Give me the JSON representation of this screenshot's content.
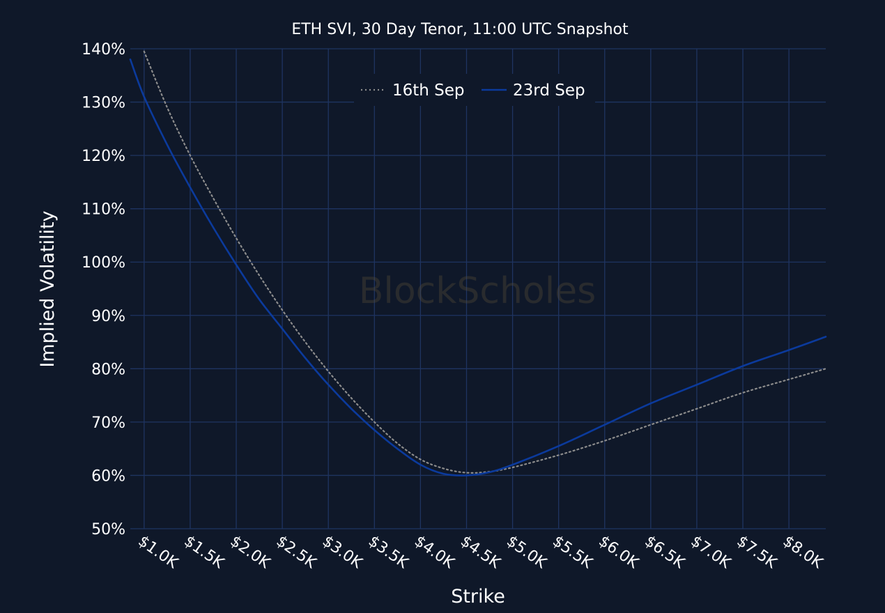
{
  "watermark": "BlockScholes",
  "colors": {
    "background": "#0f1829",
    "grid": "#1f3461",
    "series_16th": "#8c8c8c",
    "series_23rd": "#0b3a9c"
  },
  "chart_data": {
    "type": "line",
    "title": "ETH SVI, 30 Day Tenor, 11:00 UTC Snapshot",
    "xlabel": "Strike",
    "ylabel": "Implied Volatility",
    "grid": true,
    "legend": "top-center",
    "xlim": [
      850,
      8400
    ],
    "ylim": [
      50,
      140
    ],
    "x_ticks": [
      1000,
      1500,
      2000,
      2500,
      3000,
      3500,
      4000,
      4500,
      5000,
      5500,
      6000,
      6500,
      7000,
      7500,
      8000
    ],
    "x_tick_labels": [
      "$1.0K",
      "$1.5K",
      "$2.0K",
      "$2.5K",
      "$3.0K",
      "$3.5K",
      "$4.0K",
      "$4.5K",
      "$5.0K",
      "$5.5K",
      "$6.0K",
      "$6.5K",
      "$7.0K",
      "$7.5K",
      "$8.0K"
    ],
    "y_ticks": [
      50,
      60,
      70,
      80,
      90,
      100,
      110,
      120,
      130,
      140
    ],
    "y_tick_labels": [
      "50%",
      "60%",
      "70%",
      "80%",
      "90%",
      "100%",
      "110%",
      "120%",
      "130%",
      "140%"
    ],
    "series": [
      {
        "name": "16th Sep",
        "style": "dotted",
        "color": "#8c8c8c",
        "x": [
          1000,
          1250,
          1500,
          1750,
          2000,
          2250,
          2500,
          2750,
          3000,
          3250,
          3500,
          3750,
          4000,
          4250,
          4500,
          4750,
          5000,
          5500,
          6000,
          6500,
          7000,
          7500,
          8000,
          8400
        ],
        "y": [
          139.5,
          129,
          120,
          112,
          104.5,
          97.5,
          91,
          85,
          79.5,
          74.5,
          70,
          66,
          63,
          61.3,
          60.5,
          60.7,
          61.5,
          63.8,
          66.5,
          69.5,
          72.5,
          75.5,
          78,
          80
        ]
      },
      {
        "name": "23rd Sep",
        "style": "solid",
        "color": "#0b3a9c",
        "x": [
          850,
          1000,
          1250,
          1500,
          1750,
          2000,
          2250,
          2500,
          2750,
          3000,
          3250,
          3500,
          3750,
          4000,
          4250,
          4500,
          4750,
          5000,
          5500,
          6000,
          6500,
          7000,
          7500,
          8000,
          8400
        ],
        "y": [
          138,
          131,
          122,
          114,
          106.5,
          99.5,
          93,
          87.5,
          82,
          77,
          72.5,
          68.5,
          65,
          62,
          60.3,
          60,
          60.6,
          62,
          65.5,
          69.5,
          73.5,
          77,
          80.5,
          83.5,
          86
        ]
      }
    ]
  }
}
